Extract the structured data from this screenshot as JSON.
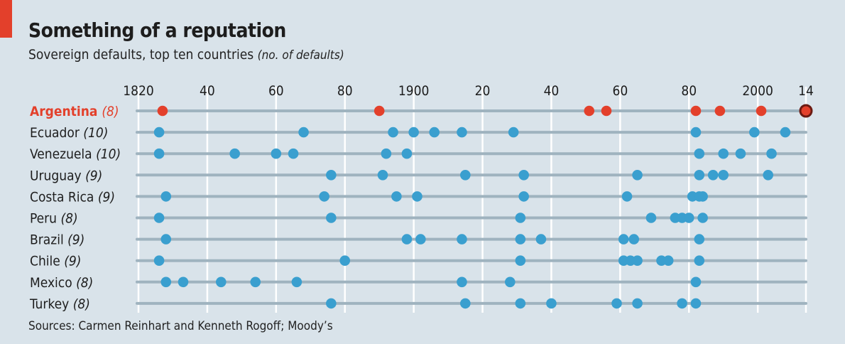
{
  "header": {
    "title": "Something of a reputation",
    "subtitle": "Sovereign defaults, top ten countries",
    "subtitle_note": "(no. of defaults)"
  },
  "footer": {
    "source": "Sources: Carmen Reinhart and Kenneth Rogoff; Moody’s"
  },
  "colors": {
    "background": "#d9e3ea",
    "highlight": "#e3402b",
    "dot": "#3a9fcf",
    "line": "#9fb3bf",
    "grid": "#ffffff",
    "latest_ring": "#6b1a12"
  },
  "chart_data": {
    "type": "scatter",
    "title": "Something of a reputation",
    "subtitle": "Sovereign defaults, top ten countries (no. of defaults)",
    "xlabel": "",
    "ylabel": "",
    "xlim": [
      1820,
      2014
    ],
    "x_ticks": [
      1820,
      1840,
      1860,
      1880,
      1900,
      1920,
      1940,
      1960,
      1980,
      2000,
      2014
    ],
    "x_tick_labels": [
      "1820",
      "40",
      "60",
      "80",
      "1900",
      "20",
      "40",
      "60",
      "80",
      "2000",
      "14"
    ],
    "grid": true,
    "highlight_country": "Argentina",
    "series": [
      {
        "name": "Argentina",
        "count": 8,
        "years": [
          1827,
          1890,
          1951,
          1956,
          1982,
          1989,
          2001,
          2014
        ]
      },
      {
        "name": "Ecuador",
        "count": 10,
        "years": [
          1826,
          1868,
          1894,
          1900,
          1906,
          1914,
          1929,
          1982,
          1999,
          2008
        ]
      },
      {
        "name": "Venezuela",
        "count": 10,
        "years": [
          1826,
          1848,
          1860,
          1865,
          1892,
          1898,
          1983,
          1990,
          1995,
          2004
        ]
      },
      {
        "name": "Uruguay",
        "count": 9,
        "years": [
          1876,
          1891,
          1915,
          1932,
          1965,
          1983,
          1987,
          1990,
          2003
        ]
      },
      {
        "name": "Costa Rica",
        "count": 9,
        "years": [
          1828,
          1874,
          1895,
          1901,
          1932,
          1962,
          1981,
          1983,
          1984
        ]
      },
      {
        "name": "Peru",
        "count": 8,
        "years": [
          1826,
          1876,
          1931,
          1969,
          1976,
          1978,
          1980,
          1984
        ]
      },
      {
        "name": "Brazil",
        "count": 9,
        "years": [
          1828,
          1898,
          1902,
          1914,
          1931,
          1937,
          1961,
          1964,
          1983
        ]
      },
      {
        "name": "Chile",
        "count": 9,
        "years": [
          1826,
          1880,
          1931,
          1961,
          1963,
          1965,
          1972,
          1974,
          1983
        ]
      },
      {
        "name": "Mexico",
        "count": 8,
        "years": [
          1828,
          1833,
          1844,
          1854,
          1866,
          1914,
          1928,
          1982
        ]
      },
      {
        "name": "Turkey",
        "count": 8,
        "years": [
          1876,
          1915,
          1931,
          1940,
          1959,
          1965,
          1978,
          1982
        ]
      }
    ],
    "annotations": [
      "Latest Argentina default (2014) shown with dark outline"
    ]
  }
}
